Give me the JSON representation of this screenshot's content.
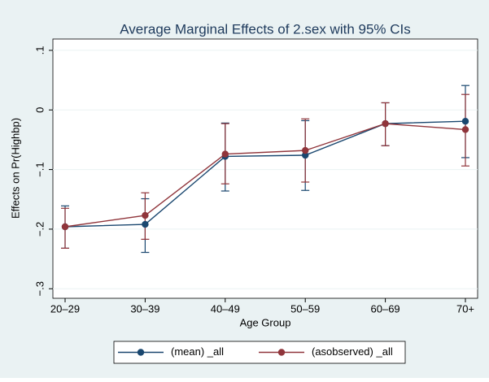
{
  "chart_data": {
    "type": "line",
    "title": "Average Marginal Effects of 2.sex with 95% CIs",
    "x_label": "Age Group",
    "y_label": "Effects on Pr(Highbp)",
    "categories": [
      "20–29",
      "30–39",
      "40–49",
      "50–59",
      "60–69",
      "70+"
    ],
    "series": [
      {
        "name": "(mean) _all",
        "color": "#1a476f",
        "values": [
          -0.196,
          -0.192,
          -0.078,
          -0.076,
          -0.023,
          -0.019
        ],
        "lower": [
          -0.232,
          -0.239,
          -0.136,
          -0.135,
          -0.06,
          -0.08
        ],
        "upper": [
          -0.161,
          -0.149,
          -0.022,
          -0.018,
          0.012,
          0.041
        ]
      },
      {
        "name": "(asobserved) _all",
        "color": "#90353b",
        "values": [
          -0.196,
          -0.177,
          -0.074,
          -0.068,
          -0.023,
          -0.033
        ],
        "lower": [
          -0.232,
          -0.217,
          -0.124,
          -0.121,
          -0.06,
          -0.094
        ],
        "upper": [
          -0.165,
          -0.139,
          -0.023,
          -0.015,
          0.012,
          0.026
        ]
      }
    ],
    "ylim": [
      -0.316,
      0.119
    ],
    "yticks": [
      {
        "value": -0.3,
        "label": "−.3"
      },
      {
        "value": -0.2,
        "label": "−.2"
      },
      {
        "value": -0.1,
        "label": "−.1"
      },
      0,
      {
        "value": 0.1,
        "label": ".1"
      }
    ],
    "grid": true,
    "legend": "bottom"
  }
}
